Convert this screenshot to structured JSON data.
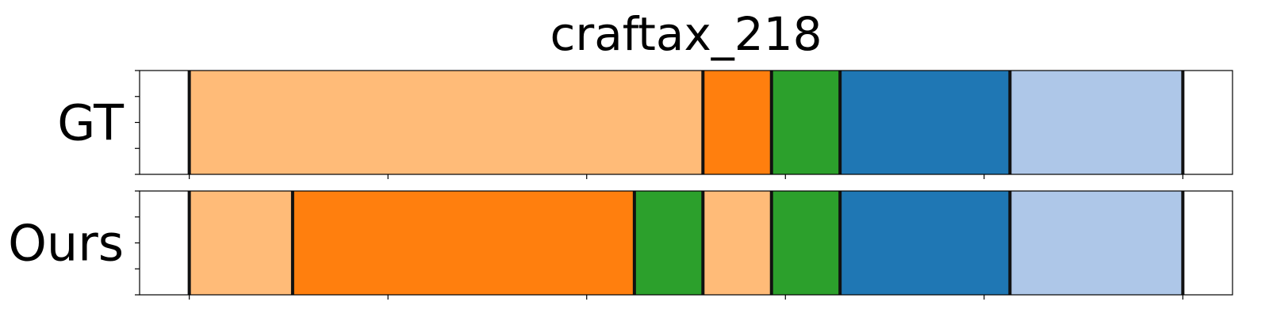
{
  "chart_data": {
    "type": "segmentation-timeline",
    "title": "craftax_218",
    "xlim": [
      0,
      1100
    ],
    "xticks": [
      50,
      250,
      450,
      650,
      850,
      1050
    ],
    "yticks_per_row": 5,
    "palette": {
      "light-orange": "#ffbb78",
      "orange": "#ff7f0e",
      "green": "#2ca02c",
      "blue": "#1f77b4",
      "light-blue": "#aec7e8"
    },
    "rows": [
      {
        "label": "GT",
        "segments": [
          {
            "start": 50,
            "end": 567,
            "color": "light-orange"
          },
          {
            "start": 567,
            "end": 636,
            "color": "orange"
          },
          {
            "start": 636,
            "end": 705,
            "color": "green"
          },
          {
            "start": 705,
            "end": 876,
            "color": "blue"
          },
          {
            "start": 876,
            "end": 1050,
            "color": "light-blue"
          }
        ],
        "boundaries": [
          50,
          567,
          636,
          705,
          876,
          1050
        ]
      },
      {
        "label": "Ours",
        "segments": [
          {
            "start": 50,
            "end": 154,
            "color": "light-orange"
          },
          {
            "start": 154,
            "end": 498,
            "color": "orange"
          },
          {
            "start": 498,
            "end": 567,
            "color": "green"
          },
          {
            "start": 567,
            "end": 636,
            "color": "light-orange"
          },
          {
            "start": 636,
            "end": 705,
            "color": "green"
          },
          {
            "start": 705,
            "end": 876,
            "color": "blue"
          },
          {
            "start": 876,
            "end": 1050,
            "color": "light-blue"
          }
        ],
        "boundaries": [
          50,
          154,
          498,
          567,
          636,
          705,
          876,
          1050
        ]
      }
    ]
  }
}
